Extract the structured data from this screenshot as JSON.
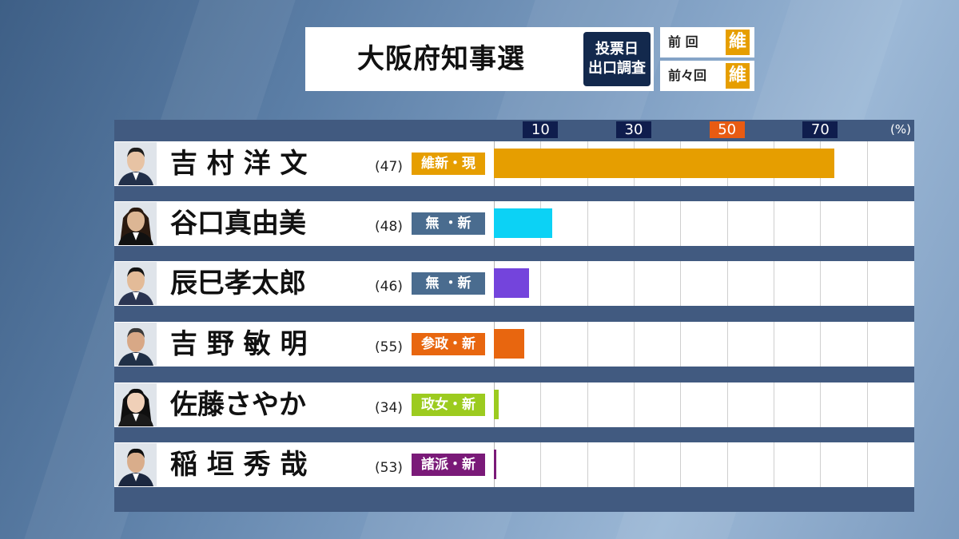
{
  "title": "大阪府知事選",
  "exit_poll": {
    "line1": "投票日",
    "line2": "出口調査"
  },
  "previous": [
    {
      "label": "前 回",
      "party": "維"
    },
    {
      "label": "前々回",
      "party": "維"
    }
  ],
  "axis": {
    "unit": "(%)",
    "ticks": [
      "10",
      "30",
      "50",
      "70"
    ],
    "highlight_tick": "50",
    "highlight_color": "#e85b12"
  },
  "chart_data": {
    "type": "bar",
    "orientation": "horizontal",
    "xlim": [
      0,
      90
    ],
    "xticks": [
      10,
      30,
      50,
      70
    ],
    "grid": true,
    "categories": [
      "吉村洋文",
      "谷口真由美",
      "辰巳孝太郎",
      "吉野敏明",
      "佐藤さやか",
      "稲垣秀哉"
    ],
    "values": [
      73,
      12.5,
      7.5,
      6.5,
      1,
      0.5
    ]
  },
  "candidates": [
    {
      "name": "吉 村 洋 文",
      "age": "(47)",
      "party": "維新・現",
      "party_color": "#e69e00",
      "bar_color": "#e69e00"
    },
    {
      "name": "谷口真由美",
      "age": "(48)",
      "party": "無 ・新",
      "party_color": "#4a6c8f",
      "bar_color": "#0cd2f5"
    },
    {
      "name": "辰巳孝太郎",
      "age": "(46)",
      "party": "無 ・新",
      "party_color": "#4a6c8f",
      "bar_color": "#7444dc"
    },
    {
      "name": "吉 野 敏 明",
      "age": "(55)",
      "party": "参政・新",
      "party_color": "#e8660f",
      "bar_color": "#e8660f"
    },
    {
      "name": "佐藤さやか",
      "age": "(34)",
      "party": "政女・新",
      "party_color": "#9ccb1f",
      "bar_color": "#9ccb1f"
    },
    {
      "name": "稲 垣 秀 哉",
      "age": "(53)",
      "party": "諸派・新",
      "party_color": "#7a1a78",
      "bar_color": "#7a1a78"
    }
  ]
}
